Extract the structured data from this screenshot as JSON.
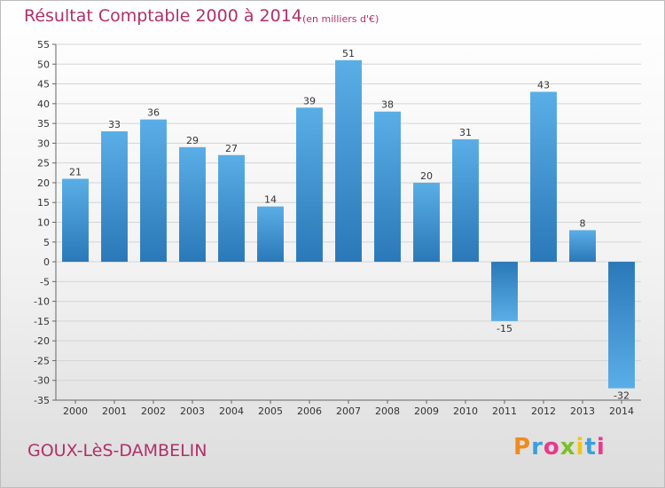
{
  "header": {
    "title": "Résultat Comptable 2000 à 2014",
    "unit": "(en milliers d'€)"
  },
  "footer": {
    "commune": "GOUX-LèS-DAMBELIN",
    "brand": "Proxiti"
  },
  "colors": {
    "title": "#b0306a",
    "bar_light": "#5aaee6",
    "bar_dark": "#2a78b8",
    "grid": "#d4d4d4"
  },
  "chart_data": {
    "type": "bar",
    "title": "Résultat Comptable 2000 à 2014",
    "xlabel": "",
    "ylabel": "",
    "ylim": [
      -35,
      55
    ],
    "yticks": [
      55,
      50,
      45,
      40,
      35,
      30,
      25,
      20,
      15,
      10,
      5,
      0,
      -5,
      -10,
      -15,
      -20,
      -25,
      -30,
      -35
    ],
    "grid": true,
    "legend": "none",
    "categories": [
      "2000",
      "2001",
      "2002",
      "2003",
      "2004",
      "2005",
      "2006",
      "2007",
      "2008",
      "2009",
      "2010",
      "2011",
      "2012",
      "2013",
      "2014"
    ],
    "values": [
      21,
      33,
      36,
      29,
      27,
      14,
      39,
      51,
      38,
      20,
      31,
      -15,
      43,
      8,
      -32
    ]
  }
}
